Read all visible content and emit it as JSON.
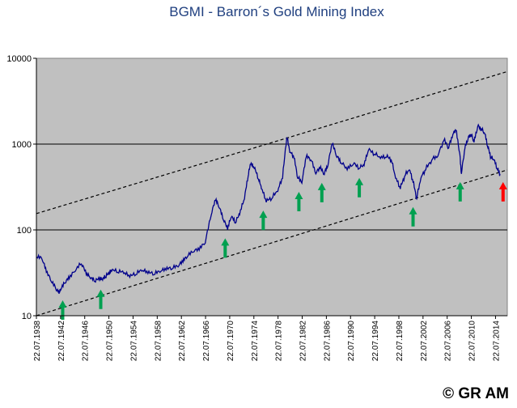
{
  "chart_data": {
    "type": "line",
    "title": "BGMI - Barron´s Gold Mining Index",
    "scale": "log",
    "ylim": [
      10,
      10000
    ],
    "y_ticks": [
      10,
      100,
      1000,
      10000
    ],
    "y_tick_labels": [
      "10",
      "100",
      "1000",
      "10000"
    ],
    "xlim": [
      1938.55,
      2016.5
    ],
    "x_ticks": [
      1938.55,
      1942.55,
      1946.55,
      1950.55,
      1954.55,
      1958.55,
      1962.55,
      1966.55,
      1970.55,
      1974.55,
      1978.55,
      1982.55,
      1986.55,
      1990.55,
      1994.55,
      1998.55,
      2002.55,
      2006.55,
      2010.55,
      2014.55
    ],
    "x_tick_labels": [
      "22.07.1938",
      "22.07.1942",
      "22.07.1946",
      "22.07.1950",
      "22.07.1954",
      "22.07.1958",
      "22.07.1962",
      "22.07.1966",
      "22.07.1970",
      "22.07.1974",
      "22.07.1978",
      "22.07.1982",
      "22.07.1986",
      "22.07.1990",
      "22.07.1994",
      "22.07.1998",
      "22.07.2002",
      "22.07.2006",
      "22.07.2010",
      "22.07.2014"
    ],
    "grid": "horizontal major lines",
    "series": [
      {
        "name": "BGMI",
        "color": "#00008b",
        "x": [
          1938.6,
          1939.5,
          1940.2,
          1941.0,
          1941.8,
          1942.3,
          1942.6,
          1943.3,
          1944.0,
          1945.0,
          1946.0,
          1946.8,
          1947.5,
          1948.2,
          1949.0,
          1949.5,
          1950.0,
          1950.5,
          1951.0,
          1952.0,
          1953.0,
          1954.0,
          1955.0,
          1956.0,
          1957.0,
          1958.0,
          1959.0,
          1960.0,
          1961.0,
          1962.0,
          1962.8,
          1963.5,
          1964.5,
          1965.5,
          1966.5,
          1967.5,
          1968.2,
          1968.8,
          1969.5,
          1970.2,
          1970.8,
          1971.5,
          1972.2,
          1973.0,
          1973.6,
          1974.0,
          1974.6,
          1975.3,
          1975.8,
          1976.6,
          1977.5,
          1978.5,
          1979.3,
          1980.0,
          1980.5,
          1981.2,
          1981.8,
          1982.5,
          1983.2,
          1984.0,
          1984.8,
          1985.5,
          1986.2,
          1986.8,
          1987.5,
          1988.3,
          1989.0,
          1990.0,
          1991.0,
          1992.0,
          1992.8,
          1993.5,
          1994.5,
          1995.5,
          1996.5,
          1997.3,
          1998.0,
          1998.8,
          1999.5,
          2000.3,
          2000.9,
          2001.5,
          2002.2,
          2003.0,
          2004.0,
          2005.0,
          2006.0,
          2006.8,
          2007.5,
          2008.0,
          2008.6,
          2008.9,
          2009.5,
          2010.0,
          2010.5,
          2011.0,
          2011.6,
          2012.2,
          2012.8,
          2013.3,
          2013.8,
          2014.3,
          2014.9,
          2015.3
        ],
        "values": [
          48,
          45,
          32,
          25,
          20,
          18,
          20,
          24,
          27,
          33,
          40,
          30,
          27,
          25,
          26,
          26,
          28,
          30,
          33,
          32,
          31,
          28,
          30,
          33,
          31,
          30,
          32,
          34,
          35,
          37,
          42,
          48,
          55,
          58,
          70,
          150,
          220,
          180,
          130,
          100,
          140,
          120,
          150,
          230,
          420,
          580,
          520,
          390,
          300,
          210,
          230,
          280,
          400,
          1200,
          800,
          680,
          400,
          350,
          700,
          650,
          450,
          520,
          440,
          560,
          1000,
          700,
          600,
          500,
          580,
          520,
          560,
          840,
          760,
          680,
          700,
          650,
          400,
          300,
          420,
          500,
          360,
          230,
          400,
          500,
          650,
          720,
          1100,
          900,
          1300,
          1450,
          800,
          450,
          900,
          1150,
          1300,
          1050,
          1600,
          1500,
          1300,
          900,
          700,
          650,
          500,
          450
        ]
      }
    ],
    "trend_lines": [
      {
        "name": "upper-trend",
        "style": "dashed",
        "from": [
          1938.55,
          155
        ],
        "to": [
          2016.5,
          7000
        ]
      },
      {
        "name": "lower-trend",
        "style": "dashed",
        "from": [
          1938.55,
          10
        ],
        "to": [
          2016.5,
          500
        ]
      }
    ],
    "annotations": [
      {
        "type": "arrow-up",
        "color": "#00a050",
        "x": 1942.9,
        "y": 18
      },
      {
        "type": "arrow-up",
        "color": "#00a050",
        "x": 1949.2,
        "y": 24
      },
      {
        "type": "arrow-up",
        "color": "#00a050",
        "x": 1969.8,
        "y": 95
      },
      {
        "type": "arrow-up",
        "color": "#00a050",
        "x": 1976.1,
        "y": 200
      },
      {
        "type": "arrow-up",
        "color": "#00a050",
        "x": 1982.0,
        "y": 330
      },
      {
        "type": "arrow-up",
        "color": "#00a050",
        "x": 1985.8,
        "y": 420
      },
      {
        "type": "arrow-up",
        "color": "#00a050",
        "x": 1992.0,
        "y": 480
      },
      {
        "type": "arrow-up",
        "color": "#00a050",
        "x": 2000.9,
        "y": 220
      },
      {
        "type": "arrow-up",
        "color": "#00a050",
        "x": 2008.7,
        "y": 430
      },
      {
        "type": "arrow-up",
        "color": "#ff0000",
        "x": 2015.8,
        "y": 430
      }
    ]
  },
  "footer": {
    "copyright": "© GR AM"
  }
}
